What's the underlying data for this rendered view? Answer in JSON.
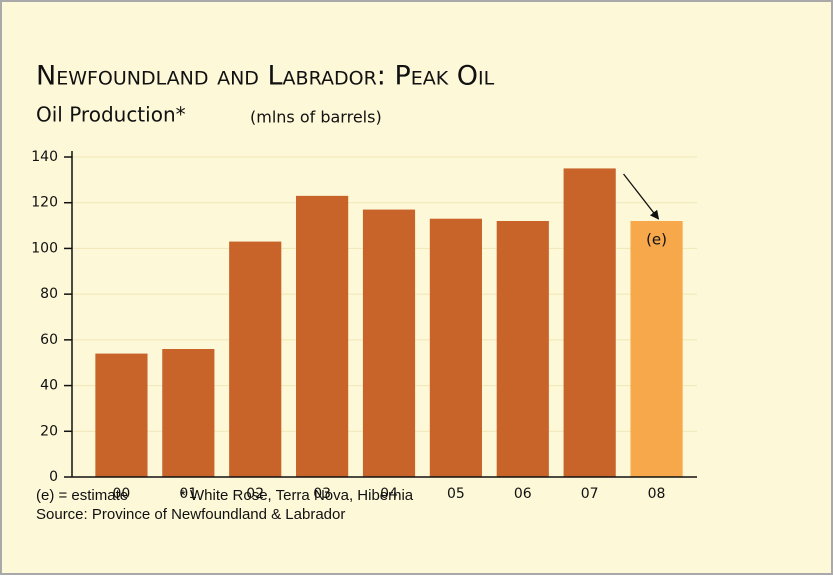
{
  "chart_data": {
    "type": "bar",
    "title": "Newfoundland and Labrador: Peak Oil",
    "subtitle": "Oil Production*",
    "unit_label": "(mlns of barrels)",
    "categories": [
      "00",
      "01",
      "02",
      "03",
      "04",
      "05",
      "06",
      "07",
      "08"
    ],
    "values": [
      54,
      56,
      103,
      123,
      117,
      113,
      112,
      135,
      112
    ],
    "colors": [
      "#c8632a",
      "#c8632a",
      "#c8632a",
      "#c8632a",
      "#c8632a",
      "#c8632a",
      "#c8632a",
      "#c8632a",
      "#f6a84b"
    ],
    "ylim": [
      0,
      140
    ],
    "yticks": [
      0,
      20,
      40,
      60,
      80,
      100,
      120,
      140
    ],
    "grid": true,
    "annotation": "(e)",
    "notes": [
      "(e) = estimate",
      "* White Rose, Terra Nova, Hibernia"
    ],
    "source": "Source: Province of Newfoundland & Labrador"
  }
}
